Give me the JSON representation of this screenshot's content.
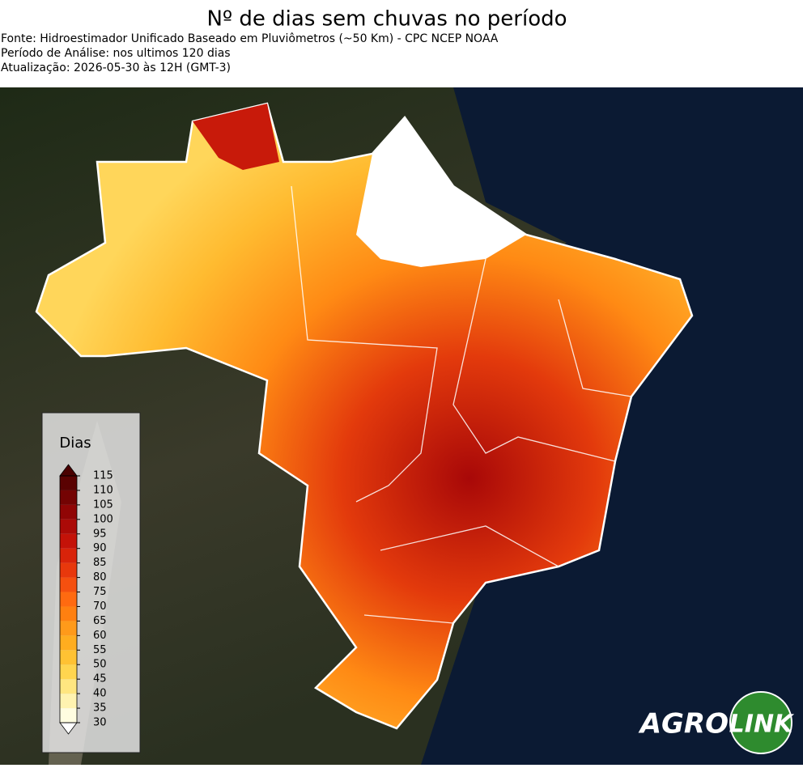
{
  "header": {
    "title": "Nº de dias sem chuvas no período",
    "lines": [
      "Fonte: Hidroestimador Unificado Baseado em Pluviômetros (~50 Km) - CPC NCEP NOAA",
      "Período de Análise: nos ultimos 120 dias",
      "Atualização: 2026-05-30 às 12H (GMT-3)"
    ]
  },
  "legend": {
    "title": "Dias",
    "ticks": [
      30,
      35,
      40,
      45,
      50,
      55,
      60,
      65,
      70,
      75,
      80,
      85,
      90,
      95,
      100,
      105,
      110,
      115
    ],
    "colors": [
      "#fffde0",
      "#fff3b0",
      "#ffe680",
      "#ffd54f",
      "#ffc233",
      "#ffad1f",
      "#ff9a1a",
      "#ff8010",
      "#ff6a10",
      "#f5500f",
      "#e8380c",
      "#d8230a",
      "#c41208",
      "#ab0a07",
      "#900505",
      "#740303",
      "#5a0202"
    ],
    "under_color": "#ffffff",
    "over_color": "#4a0101"
  },
  "logo": {
    "left": "AGRO",
    "right": "LINK"
  }
}
